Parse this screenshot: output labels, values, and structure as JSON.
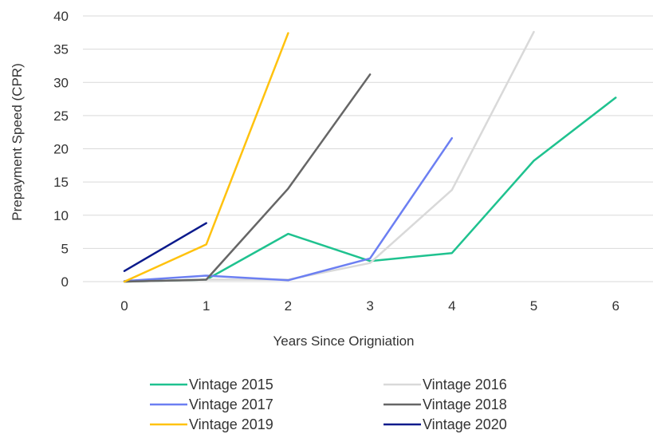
{
  "chart_data": {
    "type": "line",
    "title": "",
    "xlabel": "Years Since Origniation",
    "ylabel": "Prepayment Speed (CPR)",
    "x": [
      0,
      1,
      2,
      3,
      4,
      5,
      6
    ],
    "xlim": [
      0,
      6
    ],
    "ylim": [
      0,
      40
    ],
    "yticks": [
      0,
      5,
      10,
      15,
      20,
      25,
      30,
      35,
      40
    ],
    "grid": true,
    "legend_position": "bottom",
    "series": [
      {
        "name": "Vintage 2015",
        "color": "#1fc28f",
        "values": [
          0,
          0.3,
          7.2,
          3.1,
          4.3,
          18.2,
          27.7
        ]
      },
      {
        "name": "Vintage 2016",
        "color": "#d9d9d9",
        "values": [
          0,
          0.3,
          0.3,
          2.8,
          13.8,
          37.6,
          null
        ]
      },
      {
        "name": "Vintage 2017",
        "color": "#6c7ff2",
        "values": [
          0.1,
          0.9,
          0.2,
          3.5,
          21.6,
          null,
          null
        ]
      },
      {
        "name": "Vintage 2018",
        "color": "#666666",
        "values": [
          0,
          0.3,
          14.0,
          31.2,
          null,
          null,
          null
        ]
      },
      {
        "name": "Vintage 2019",
        "color": "#ffc20e",
        "values": [
          0,
          5.6,
          37.4,
          null,
          null,
          null,
          null
        ]
      },
      {
        "name": "Vintage 2020",
        "color": "#0b1a8c",
        "values": [
          1.6,
          8.8,
          null,
          null,
          null,
          null,
          null
        ]
      }
    ]
  }
}
